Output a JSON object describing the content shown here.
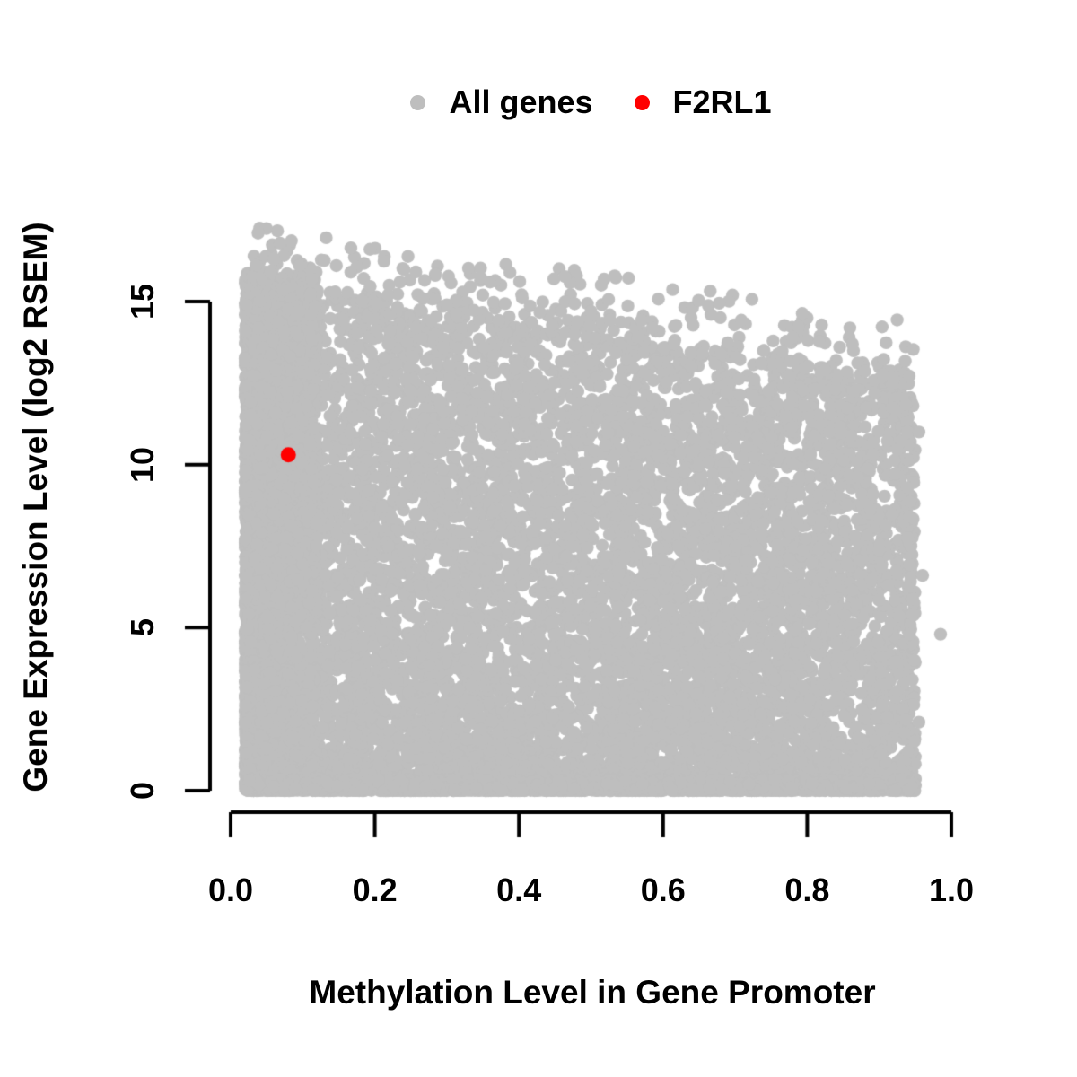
{
  "chart_data": {
    "type": "scatter",
    "title": "",
    "xlabel": "Methylation Level in Gene Promoter",
    "ylabel": "Gene Expression Level (log2 RSEM)",
    "x_ticks": [
      0,
      0.2,
      0.4,
      0.6,
      0.8,
      1.0
    ],
    "x_tick_labels": [
      "0.0",
      "0.2",
      "0.4",
      "0.6",
      "0.8",
      "1.0"
    ],
    "y_ticks": [
      0,
      5,
      10,
      15
    ],
    "y_tick_labels": [
      "0",
      "5",
      "10",
      "15"
    ],
    "xlim": [
      0,
      1
    ],
    "ylim": [
      0,
      17.2
    ],
    "grid": false,
    "axis_color": "#000000",
    "text_color": "#000000",
    "background_color": "#ffffff",
    "legend": {
      "position": "top-center",
      "items": [
        {
          "label": "All genes",
          "color": "#bebebe"
        },
        {
          "label": "F2RL1",
          "color": "#ff0000"
        }
      ]
    },
    "series": [
      {
        "name": "All genes",
        "color": "#bebebe",
        "marker": "circle",
        "n_points_visible_approx": 13000,
        "x_range": [
          0.02,
          0.95
        ],
        "y_range": [
          0,
          17.1
        ],
        "trend": "dense cloud; upper envelope of expression decreases as promoter methylation increases; densest at low methylation and along zero expression",
        "generator": {
          "seed": 424242,
          "point_radius_px": 7.2,
          "x_max": 0.952,
          "components": [
            {
              "name": "bulk",
              "n": 8500,
              "x_min": 0.02,
              "x_span": 0.93,
              "x_pow": 1.12,
              "env_a": 15.6,
              "env_b": 3.4,
              "y_pow": 1.3
            },
            {
              "name": "left_column",
              "n": 2600,
              "x_min": 0.02,
              "x_span": 0.1,
              "x_pow": 1.4,
              "env_a": 15.9,
              "env_b": 0.0,
              "y_pow": 1.05
            },
            {
              "name": "bottom_band",
              "n": 1800,
              "x_min": 0.02,
              "x_span": 0.93,
              "x_pow": 1.05,
              "env_a": 0.35,
              "env_b": 0.0,
              "y_pow": 2.0
            },
            {
              "name": "top_sparse",
              "n": 330,
              "x_min": 0.03,
              "x_span": 0.92,
              "x_pow": 1.0,
              "env_a": 15.6,
              "env_b": 3.4,
              "above": 2.0,
              "above_pow": 2.3
            }
          ],
          "notable_outlier_points": [
            [
              0.038,
              17.1
            ],
            [
              0.06,
              16.3
            ],
            [
              0.055,
              15.9
            ],
            [
              0.145,
              15.3
            ],
            [
              0.22,
              15.5
            ],
            [
              0.235,
              15.6
            ],
            [
              0.3,
              14.9
            ],
            [
              0.36,
              15.6
            ],
            [
              0.5,
              14.7
            ],
            [
              0.565,
              13.9
            ],
            [
              0.74,
              13.5
            ],
            [
              0.78,
              13.9
            ],
            [
              0.825,
              12.9
            ],
            [
              0.845,
              13.6
            ],
            [
              0.92,
              12.6
            ],
            [
              0.955,
              11.0
            ],
            [
              0.96,
              6.6
            ],
            [
              0.985,
              4.8
            ],
            [
              0.955,
              2.1
            ],
            [
              0.94,
              1.2
            ]
          ]
        }
      },
      {
        "name": "F2RL1",
        "color": "#ff0000",
        "marker": "circle",
        "point_radius_px": 8.5,
        "points": [
          [
            0.08,
            10.3
          ]
        ]
      }
    ]
  }
}
